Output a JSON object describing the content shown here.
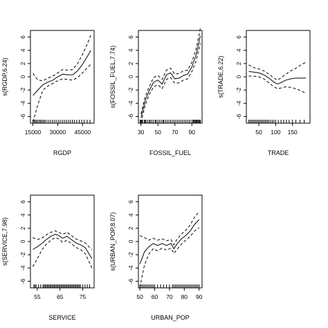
{
  "chart_data": [
    {
      "type": "line",
      "xlabel": "RGDP",
      "ylabel": "s(RGDP,6.24)",
      "xlim": [
        13500,
        52000
      ],
      "ylim": [
        -7,
        7
      ],
      "xticks": [
        15000,
        30000,
        45000
      ],
      "xtick_labels": [
        "15000",
        "30000",
        "45000"
      ],
      "yticks": [
        -6,
        -4,
        -2,
        0,
        2,
        4,
        6
      ],
      "ytick_labels": [
        "-6",
        "-4",
        "-2",
        "0",
        "2",
        "4",
        "6"
      ],
      "series": [
        {
          "style": "solid",
          "x": [
            15000,
            18000,
            21000,
            24000,
            27000,
            30000,
            33000,
            36000,
            39000,
            42000,
            45000,
            48000,
            50000
          ],
          "y": [
            -2.8,
            -2.0,
            -1.2,
            -0.8,
            -0.5,
            0.0,
            0.4,
            0.3,
            0.3,
            0.9,
            1.9,
            3.1,
            4.0
          ]
        },
        {
          "style": "dashed",
          "x": [
            15000,
            18000,
            21000,
            24000,
            27000,
            30000,
            33000,
            36000,
            39000,
            42000,
            45000,
            48000,
            50000
          ],
          "y": [
            0.5,
            -0.5,
            -0.6,
            -0.2,
            0.1,
            0.6,
            1.1,
            1.0,
            1.1,
            2.0,
            3.4,
            5.0,
            6.3
          ]
        },
        {
          "style": "dashed",
          "x": [
            15000,
            18000,
            21000,
            24000,
            27000,
            30000,
            33000,
            36000,
            39000,
            42000,
            45000,
            48000,
            50000
          ],
          "y": [
            -6.8,
            -4.2,
            -2.0,
            -1.4,
            -1.0,
            -0.6,
            -0.3,
            -0.4,
            -0.5,
            -0.1,
            0.6,
            1.4,
            1.9
          ]
        }
      ],
      "rug": [
        15000,
        15800,
        16500,
        17200,
        18000,
        18900,
        19600,
        20400,
        21300,
        22000,
        23000,
        24200,
        25400,
        26600,
        27800,
        29000,
        30300,
        31500,
        32800,
        34000,
        35200,
        36400,
        37600,
        38800,
        40000,
        41500,
        43000,
        44500,
        46000,
        47800,
        49500
      ]
    },
    {
      "type": "line",
      "xlabel": "FOSSIL_FUEL",
      "ylabel": "s(FOSSIL_FUEL,7.74)",
      "xlim": [
        27,
        102
      ],
      "ylim": [
        -7,
        7
      ],
      "xticks": [
        30,
        50,
        70,
        90
      ],
      "xtick_labels": [
        "30",
        "50",
        "70",
        "90"
      ],
      "yticks": [
        -6,
        -4,
        -2,
        0,
        2,
        4,
        6
      ],
      "ytick_labels": [
        "-6",
        "-4",
        "-2",
        "0",
        "2",
        "4",
        "6"
      ],
      "series": [
        {
          "style": "solid",
          "x": [
            30,
            35,
            40,
            45,
            50,
            55,
            60,
            65,
            70,
            75,
            80,
            85,
            90,
            95,
            100
          ],
          "y": [
            -6.2,
            -3.6,
            -2.0,
            -0.8,
            -0.5,
            -1.1,
            0.3,
            0.6,
            -0.3,
            -0.2,
            0.2,
            0.4,
            1.5,
            3.3,
            6.2
          ]
        },
        {
          "style": "dashed",
          "x": [
            30,
            35,
            40,
            45,
            50,
            55,
            60,
            65,
            70,
            75,
            80,
            85,
            90,
            95,
            100
          ],
          "y": [
            -5.6,
            -3.0,
            -1.4,
            -0.1,
            0.2,
            -0.4,
            1.0,
            1.3,
            0.4,
            0.5,
            0.9,
            1.0,
            2.2,
            4.2,
            7.3
          ]
        },
        {
          "style": "dashed",
          "x": [
            30,
            35,
            40,
            45,
            50,
            55,
            60,
            65,
            70,
            75,
            80,
            85,
            90,
            95,
            100
          ],
          "y": [
            -6.9,
            -4.3,
            -2.6,
            -1.5,
            -1.2,
            -1.8,
            -0.4,
            -0.1,
            -1.0,
            -0.9,
            -0.5,
            -0.3,
            0.8,
            2.4,
            5.1
          ]
        }
      ],
      "rug": [
        29,
        30,
        31,
        32,
        34,
        35,
        36,
        38,
        40,
        41,
        43,
        45,
        47,
        48,
        50,
        52,
        54,
        56,
        57,
        59,
        61,
        63,
        65,
        67,
        69,
        71,
        73,
        75,
        77,
        79,
        81,
        83,
        85,
        87,
        89,
        91,
        92,
        93,
        94,
        95,
        96,
        97,
        98,
        99,
        100
      ]
    },
    {
      "type": "line",
      "xlabel": "TRADE",
      "ylabel": "s(TRADE,6.22)",
      "xlim": [
        13,
        202
      ],
      "ylim": [
        -7,
        7
      ],
      "xticks": [
        50,
        100,
        150
      ],
      "xtick_labels": [
        "50",
        "100",
        "150"
      ],
      "yticks": [
        -6,
        -4,
        -2,
        0,
        2,
        4,
        6
      ],
      "ytick_labels": [
        "-6",
        "-4",
        "-2",
        "0",
        "2",
        "4",
        "6"
      ],
      "series": [
        {
          "style": "solid",
          "x": [
            20,
            35,
            50,
            65,
            80,
            95,
            105,
            115,
            130,
            145,
            160,
            175,
            190
          ],
          "y": [
            0.8,
            0.7,
            0.6,
            0.3,
            -0.2,
            -0.8,
            -1.1,
            -0.9,
            -0.5,
            -0.3,
            -0.2,
            -0.2,
            -0.2
          ]
        },
        {
          "style": "dashed",
          "x": [
            20,
            35,
            50,
            65,
            80,
            95,
            105,
            115,
            130,
            145,
            160,
            175,
            190
          ],
          "y": [
            1.8,
            1.4,
            1.2,
            0.9,
            0.4,
            -0.2,
            -0.5,
            -0.2,
            0.4,
            0.9,
            1.3,
            1.8,
            2.2
          ]
        },
        {
          "style": "dashed",
          "x": [
            20,
            35,
            50,
            65,
            80,
            95,
            105,
            115,
            130,
            145,
            160,
            175,
            190
          ],
          "y": [
            0.1,
            0.1,
            0.0,
            -0.3,
            -0.9,
            -1.5,
            -1.8,
            -1.7,
            -1.5,
            -1.6,
            -1.8,
            -2.1,
            -2.5
          ]
        }
      ],
      "rug": [
        20,
        24,
        28,
        32,
        36,
        40,
        44,
        48,
        52,
        56,
        60,
        64,
        68,
        72,
        76,
        80,
        85,
        90,
        95,
        100,
        108,
        116,
        124,
        132,
        140,
        150,
        160,
        172,
        185
      ]
    },
    {
      "type": "line",
      "xlabel": "SERVICE",
      "ylabel": "s(SERVICE,7.98)",
      "xlim": [
        52,
        80
      ],
      "ylim": [
        -7,
        7
      ],
      "xticks": [
        55,
        65,
        75
      ],
      "xtick_labels": [
        "55",
        "65",
        "75"
      ],
      "yticks": [
        -6,
        -4,
        -2,
        0,
        2,
        4,
        6
      ],
      "ytick_labels": [
        "-6",
        "-4",
        "-2",
        "0",
        "2",
        "4",
        "6"
      ],
      "series": [
        {
          "style": "solid",
          "x": [
            53,
            55,
            57,
            59,
            61,
            63,
            65,
            66,
            67,
            68,
            70,
            72,
            74,
            76,
            78,
            79
          ],
          "y": [
            -1.2,
            -0.8,
            -0.3,
            0.3,
            0.8,
            1.1,
            0.8,
            0.5,
            0.6,
            0.8,
            0.3,
            -0.2,
            -0.5,
            -0.9,
            -2.0,
            -2.6
          ]
        },
        {
          "style": "dashed",
          "x": [
            53,
            55,
            57,
            59,
            61,
            63,
            65,
            66,
            67,
            68,
            70,
            72,
            74,
            76,
            78,
            79
          ],
          "y": [
            0.6,
            0.3,
            0.5,
            1.0,
            1.4,
            1.6,
            1.3,
            1.1,
            1.2,
            1.4,
            0.9,
            0.4,
            0.1,
            -0.2,
            -0.9,
            -1.2
          ]
        },
        {
          "style": "dashed",
          "x": [
            53,
            55,
            57,
            59,
            61,
            63,
            65,
            66,
            67,
            68,
            70,
            72,
            74,
            76,
            78,
            79
          ],
          "y": [
            -3.8,
            -2.6,
            -1.3,
            -0.4,
            0.2,
            0.6,
            0.3,
            -0.1,
            0.0,
            0.2,
            -0.3,
            -0.9,
            -1.2,
            -1.8,
            -3.2,
            -4.0
          ]
        }
      ],
      "rug": [
        53.5,
        54,
        54.5,
        55.5,
        56.5,
        57.5,
        58,
        58.5,
        59,
        59.5,
        60,
        60.5,
        61,
        61.5,
        62,
        62.5,
        63,
        63.5,
        64,
        64.5,
        65,
        65.5,
        66,
        66.5,
        67,
        67.5,
        68,
        68.5,
        69,
        69.5,
        70,
        70.5,
        71,
        71.5,
        72,
        72.5,
        73,
        73.5,
        74,
        75,
        76,
        77,
        78
      ]
    },
    {
      "type": "line",
      "xlabel": "URBAN_POP",
      "ylabel": "s(URBAN_POP,8.07)",
      "xlim": [
        49,
        92
      ],
      "ylim": [
        -7,
        7
      ],
      "xticks": [
        50,
        60,
        70,
        80,
        90
      ],
      "xtick_labels": [
        "50",
        "60",
        "70",
        "80",
        "90"
      ],
      "yticks": [
        -6,
        -4,
        -2,
        0,
        2,
        4,
        6
      ],
      "ytick_labels": [
        "-6",
        "-4",
        "-2",
        "0",
        "2",
        "4",
        "6"
      ],
      "series": [
        {
          "style": "solid",
          "x": [
            50,
            53,
            56,
            59,
            62,
            65,
            68,
            71,
            73,
            75,
            78,
            81,
            84,
            87,
            90
          ],
          "y": [
            -3.4,
            -1.6,
            -0.8,
            -0.3,
            -0.6,
            -0.3,
            -0.6,
            -0.3,
            -1.1,
            -0.4,
            0.4,
            0.9,
            1.6,
            2.6,
            3.3
          ]
        },
        {
          "style": "dashed",
          "x": [
            50,
            53,
            56,
            59,
            62,
            65,
            68,
            71,
            73,
            75,
            78,
            81,
            84,
            87,
            90
          ],
          "y": [
            0.9,
            0.6,
            0.2,
            0.5,
            0.2,
            0.4,
            0.1,
            0.3,
            -0.5,
            0.3,
            1.1,
            1.7,
            2.5,
            3.7,
            4.5
          ]
        },
        {
          "style": "dashed",
          "x": [
            50,
            53,
            56,
            59,
            62,
            65,
            68,
            71,
            73,
            75,
            78,
            81,
            84,
            87,
            90
          ],
          "y": [
            -6.9,
            -3.6,
            -1.9,
            -1.1,
            -1.4,
            -1.0,
            -1.3,
            -1.0,
            -1.8,
            -1.2,
            -0.4,
            0.2,
            0.8,
            1.6,
            2.1
          ]
        }
      ],
      "rug": [
        50,
        51,
        52,
        53,
        54,
        55,
        56,
        57,
        58,
        59,
        60,
        62,
        64,
        66,
        68,
        70,
        72,
        73,
        74,
        75,
        76,
        77,
        78,
        79,
        80,
        81,
        82,
        83,
        84,
        85,
        86,
        87,
        88,
        89,
        90
      ]
    }
  ]
}
